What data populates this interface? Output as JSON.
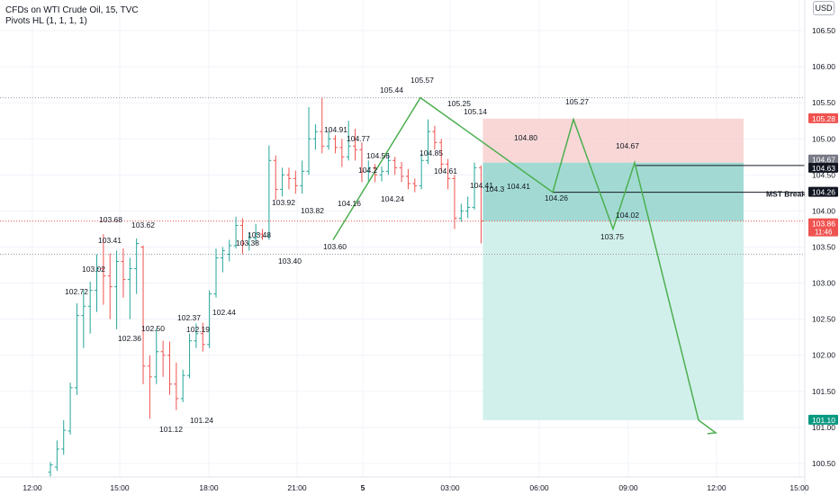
{
  "legend": {
    "title": "CFDs on WTI Crude Oil, 15, TVC",
    "indicator": "Pivots HL (1, 1, 1, 1)"
  },
  "currency_button": "USD",
  "colors": {
    "up": "#26a69a",
    "down": "#ef5350",
    "zigzag": "#4caf50",
    "stop_zone": "#f7c9c9",
    "target_zone": "#cdeee9",
    "entry_zone": "#9ad6cf",
    "grid": "#f0f3fa",
    "axis_text": "#131722"
  },
  "chart_data": {
    "type": "ohlc",
    "instrument": "CFDs on WTI Crude Oil",
    "timeframe": "15",
    "source": "TVC",
    "x_tick_labels": [
      "12:00",
      "15:00",
      "18:00",
      "21:00",
      "5",
      "03:00",
      "06:00",
      "09:00",
      "12:00",
      "15:00"
    ],
    "y_tick_labels": [
      "106.50",
      "106.00",
      "105.50",
      "105.00",
      "104.50",
      "104.00",
      "103.50",
      "103.00",
      "102.50",
      "102.00",
      "101.50",
      "101.00",
      "100.50"
    ],
    "ylim": [
      100.35,
      106.75
    ],
    "bars": [
      {
        "o": 100.38,
        "h": 100.52,
        "l": 100.32,
        "c": 100.48
      },
      {
        "o": 100.45,
        "h": 100.82,
        "l": 100.4,
        "c": 100.7
      },
      {
        "o": 100.7,
        "h": 101.1,
        "l": 100.62,
        "c": 100.96
      },
      {
        "o": 100.95,
        "h": 101.62,
        "l": 100.9,
        "c": 101.55
      },
      {
        "o": 101.55,
        "h": 102.72,
        "l": 101.45,
        "c": 102.55
      },
      {
        "o": 102.55,
        "h": 102.9,
        "l": 102.1,
        "c": 102.68
      },
      {
        "o": 102.68,
        "h": 103.02,
        "l": 102.3,
        "c": 102.9
      },
      {
        "o": 102.9,
        "h": 103.4,
        "l": 102.6,
        "c": 103.2
      },
      {
        "o": 103.2,
        "h": 103.68,
        "l": 102.7,
        "c": 103.1
      },
      {
        "o": 103.1,
        "h": 103.41,
        "l": 102.5,
        "c": 102.95
      },
      {
        "o": 102.95,
        "h": 103.45,
        "l": 102.36,
        "c": 103.3
      },
      {
        "o": 103.3,
        "h": 103.48,
        "l": 102.8,
        "c": 103.05
      },
      {
        "o": 103.05,
        "h": 103.35,
        "l": 102.5,
        "c": 103.2
      },
      {
        "o": 103.2,
        "h": 103.62,
        "l": 102.85,
        "c": 103.55
      },
      {
        "o": 103.5,
        "h": 103.52,
        "l": 101.6,
        "c": 101.85
      },
      {
        "o": 101.85,
        "h": 102.0,
        "l": 101.12,
        "c": 101.7
      },
      {
        "o": 101.7,
        "h": 102.37,
        "l": 101.6,
        "c": 102.05
      },
      {
        "o": 102.05,
        "h": 102.2,
        "l": 101.7,
        "c": 102.0
      },
      {
        "o": 102.0,
        "h": 102.19,
        "l": 101.45,
        "c": 101.6
      },
      {
        "o": 101.6,
        "h": 101.9,
        "l": 101.24,
        "c": 101.4
      },
      {
        "o": 101.4,
        "h": 101.8,
        "l": 101.35,
        "c": 101.72
      },
      {
        "o": 101.72,
        "h": 102.3,
        "l": 101.68,
        "c": 102.2
      },
      {
        "o": 102.2,
        "h": 102.44,
        "l": 102.1,
        "c": 102.3
      },
      {
        "o": 102.3,
        "h": 102.45,
        "l": 102.05,
        "c": 102.15
      },
      {
        "o": 102.15,
        "h": 102.9,
        "l": 102.1,
        "c": 102.85
      },
      {
        "o": 102.85,
        "h": 103.48,
        "l": 102.8,
        "c": 103.35
      },
      {
        "o": 103.35,
        "h": 103.5,
        "l": 103.15,
        "c": 103.45
      },
      {
        "o": 103.4,
        "h": 103.6,
        "l": 103.3,
        "c": 103.52
      },
      {
        "o": 103.52,
        "h": 103.92,
        "l": 103.48,
        "c": 103.8
      },
      {
        "o": 103.8,
        "h": 103.9,
        "l": 103.4,
        "c": 103.55
      },
      {
        "o": 103.55,
        "h": 103.7,
        "l": 103.45,
        "c": 103.62
      },
      {
        "o": 103.62,
        "h": 103.82,
        "l": 103.55,
        "c": 103.68
      },
      {
        "o": 103.68,
        "h": 103.75,
        "l": 103.6,
        "c": 103.65
      },
      {
        "o": 103.65,
        "h": 104.91,
        "l": 103.6,
        "c": 104.7
      },
      {
        "o": 104.7,
        "h": 104.77,
        "l": 104.15,
        "c": 104.3
      },
      {
        "o": 104.3,
        "h": 104.6,
        "l": 104.2,
        "c": 104.5
      },
      {
        "o": 104.5,
        "h": 104.6,
        "l": 104.3,
        "c": 104.45
      },
      {
        "o": 104.45,
        "h": 104.56,
        "l": 104.24,
        "c": 104.35
      },
      {
        "o": 104.35,
        "h": 104.7,
        "l": 104.24,
        "c": 104.55
      },
      {
        "o": 104.55,
        "h": 105.44,
        "l": 104.5,
        "c": 105.0
      },
      {
        "o": 105.0,
        "h": 105.2,
        "l": 104.85,
        "c": 105.1
      },
      {
        "o": 105.1,
        "h": 105.57,
        "l": 104.8,
        "c": 104.9
      },
      {
        "o": 104.9,
        "h": 105.1,
        "l": 104.85,
        "c": 105.0
      },
      {
        "o": 105.0,
        "h": 105.05,
        "l": 104.8,
        "c": 104.88
      },
      {
        "o": 104.88,
        "h": 105.0,
        "l": 104.61,
        "c": 104.75
      },
      {
        "o": 104.75,
        "h": 105.25,
        "l": 104.7,
        "c": 104.9
      },
      {
        "o": 104.9,
        "h": 105.14,
        "l": 104.7,
        "c": 104.85
      },
      {
        "o": 104.85,
        "h": 104.95,
        "l": 104.4,
        "c": 104.55
      },
      {
        "o": 104.55,
        "h": 104.7,
        "l": 104.4,
        "c": 104.6
      },
      {
        "o": 104.6,
        "h": 104.65,
        "l": 104.4,
        "c": 104.5
      },
      {
        "o": 104.5,
        "h": 104.62,
        "l": 104.41,
        "c": 104.55
      },
      {
        "o": 104.55,
        "h": 104.8,
        "l": 104.5,
        "c": 104.7
      },
      {
        "o": 104.7,
        "h": 104.75,
        "l": 104.5,
        "c": 104.6
      },
      {
        "o": 104.6,
        "h": 104.68,
        "l": 104.4,
        "c": 104.48
      },
      {
        "o": 104.48,
        "h": 104.58,
        "l": 104.3,
        "c": 104.38
      },
      {
        "o": 104.38,
        "h": 104.45,
        "l": 104.26,
        "c": 104.35
      },
      {
        "o": 104.35,
        "h": 104.8,
        "l": 104.3,
        "c": 104.7
      },
      {
        "o": 104.7,
        "h": 105.27,
        "l": 104.65,
        "c": 105.1
      },
      {
        "o": 105.1,
        "h": 105.18,
        "l": 104.85,
        "c": 104.95
      },
      {
        "o": 104.95,
        "h": 105.0,
        "l": 104.55,
        "c": 104.65
      },
      {
        "o": 104.65,
        "h": 104.72,
        "l": 104.3,
        "c": 104.45
      },
      {
        "o": 104.45,
        "h": 104.5,
        "l": 103.75,
        "c": 103.9
      },
      {
        "o": 103.9,
        "h": 104.1,
        "l": 103.85,
        "c": 104.0
      },
      {
        "o": 104.0,
        "h": 104.2,
        "l": 103.9,
        "c": 104.05
      },
      {
        "o": 104.05,
        "h": 104.67,
        "l": 104.02,
        "c": 104.6
      },
      {
        "o": 104.6,
        "h": 104.63,
        "l": 103.55,
        "c": 103.86
      }
    ],
    "pivot_labels": [
      {
        "text": "103.68",
        "value": 103.68
      },
      {
        "text": "103.41",
        "value": 103.41
      },
      {
        "text": "103.62",
        "value": 103.62
      },
      {
        "text": "103.02",
        "value": 103.02
      },
      {
        "text": "102.72",
        "value": 102.72
      },
      {
        "text": "102.36",
        "value": 102.36
      },
      {
        "text": "102.50",
        "value": 102.5
      },
      {
        "text": "102.37",
        "value": 102.37
      },
      {
        "text": "102.19",
        "value": 102.19
      },
      {
        "text": "101.12",
        "value": 101.12
      },
      {
        "text": "101.24",
        "value": 101.24
      },
      {
        "text": "102.44",
        "value": 102.44
      },
      {
        "text": "103.48",
        "value": 103.48
      },
      {
        "text": "103.38",
        "value": 103.38
      },
      {
        "text": "103.92",
        "value": 103.92
      },
      {
        "text": "103.82",
        "value": 103.82
      },
      {
        "text": "103.40",
        "value": 103.4
      },
      {
        "text": "103.60",
        "value": 103.6
      },
      {
        "text": "104.91",
        "value": 104.91
      },
      {
        "text": "104.77",
        "value": 104.77
      },
      {
        "text": "104.56",
        "value": 104.56
      },
      {
        "text": "104.2",
        "value": 104.2
      },
      {
        "text": "104.16",
        "value": 104.16
      },
      {
        "text": "104.24",
        "value": 104.24
      },
      {
        "text": "105.44",
        "value": 105.44
      },
      {
        "text": "105.57",
        "value": 105.57
      },
      {
        "text": "104.85",
        "value": 104.85
      },
      {
        "text": "105.25",
        "value": 105.25
      },
      {
        "text": "105.14",
        "value": 105.14
      },
      {
        "text": "104.61",
        "value": 104.61
      },
      {
        "text": "104.41",
        "value": 104.41
      },
      {
        "text": "104.3",
        "value": 104.3
      },
      {
        "text": "104.80",
        "value": 104.8
      },
      {
        "text": "104.41",
        "value": 104.41
      },
      {
        "text": "104.26",
        "value": 104.26
      },
      {
        "text": "105.27",
        "value": 105.27
      },
      {
        "text": "104.67",
        "value": 104.67
      },
      {
        "text": "104.02",
        "value": 104.02
      },
      {
        "text": "103.75",
        "value": 103.75
      }
    ],
    "zigzag": [
      103.6,
      105.57,
      104.26,
      105.27,
      103.75,
      104.67,
      101.1
    ],
    "horizontal_levels": [
      {
        "value": 105.57,
        "style": "dotted"
      },
      {
        "value": 103.86,
        "style": "dotted"
      },
      {
        "value": 103.4,
        "style": "dotted"
      },
      {
        "value": 104.63,
        "style": "solid"
      },
      {
        "value": 104.26,
        "style": "solid",
        "label": "MST Break"
      }
    ],
    "position": {
      "entry": 104.67,
      "stop": 105.28,
      "target": 101.1,
      "current": 103.86
    },
    "price_tags": [
      {
        "text": "105.28",
        "value": 105.28,
        "color": "#ef5350"
      },
      {
        "text": "104.67",
        "value": 104.67,
        "color": "#787b86"
      },
      {
        "text": "104.63",
        "value": 104.63,
        "color": "#131722"
      },
      {
        "text": "104.26",
        "value": 104.26,
        "color": "#131722"
      },
      {
        "text": "103.86",
        "value": 103.86,
        "color": "#ef5350",
        "sub": "11:46"
      },
      {
        "text": "101.10",
        "value": 101.1,
        "color": "#089981"
      }
    ],
    "annotations": [
      "MST Break"
    ]
  }
}
